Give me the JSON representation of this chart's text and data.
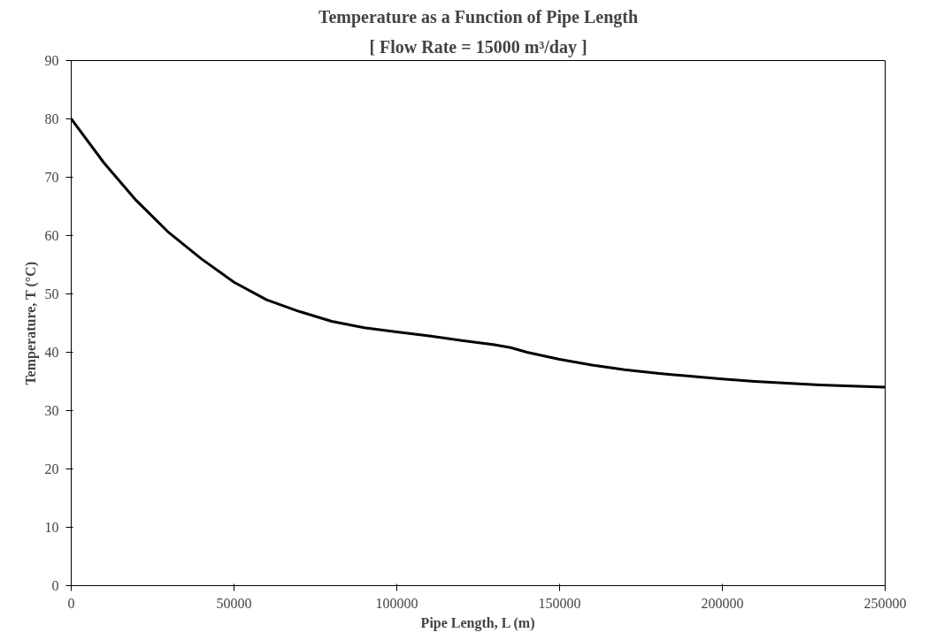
{
  "chart_data": {
    "type": "line",
    "title": "Temperature as a Function of Pipe Length",
    "subtitle": "[ Flow Rate = 15000 m³/day ]",
    "xlabel": "Pipe Length, L (m)",
    "ylabel": "Temperature, T (°C)",
    "x": [
      0,
      10000,
      20000,
      30000,
      40000,
      50000,
      60000,
      70000,
      80000,
      90000,
      100000,
      110000,
      120000,
      130000,
      135000,
      140000,
      150000,
      160000,
      170000,
      180000,
      190000,
      200000,
      210000,
      220000,
      230000,
      240000,
      250000
    ],
    "series": [
      {
        "color": "#000000",
        "values": [
          80,
          72.5,
          66,
          60.5,
          56,
          52,
          49,
          47,
          45.3,
          44.2,
          43.5,
          42.8,
          42,
          41.3,
          40.8,
          40,
          38.8,
          37.8,
          37,
          36.4,
          35.9,
          35.4,
          35,
          34.7,
          34.4,
          34.2,
          34
        ]
      }
    ],
    "xlim": [
      0,
      250000
    ],
    "xticks": [
      0,
      50000,
      100000,
      150000,
      200000,
      250000
    ],
    "ylim": [
      0,
      90
    ],
    "yticks": [
      0,
      10,
      20,
      30,
      40,
      50,
      60,
      70,
      80,
      90
    ],
    "grid": false,
    "marker": "none",
    "line_style": "solid"
  }
}
